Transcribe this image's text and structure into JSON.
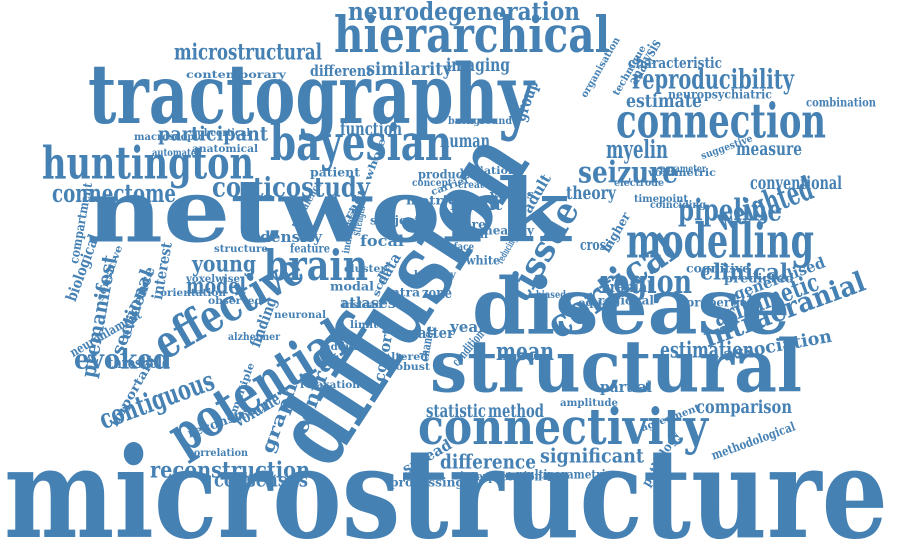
{
  "colors": {
    "word": "#4681b4",
    "background": "#ffffff"
  },
  "words": [
    "microstructure",
    "diffusion",
    "network",
    "tractography",
    "structural",
    "disease",
    "hierarchical",
    "bayesian",
    "connection",
    "connectivity",
    "huntington",
    "modelling",
    "potential",
    "effective",
    "brain",
    "cortical",
    "neurodegeneration",
    "reproducibility",
    "pipeline",
    "tissue",
    "seizure",
    "region",
    "weighted",
    "intracranial",
    "microstructural",
    "corticostudy",
    "connectome",
    "evoked",
    "contiguous",
    "mean",
    "estimation",
    "reconstruction",
    "difference",
    "significant",
    "arithmetic",
    "comparison",
    "association",
    "consensus",
    "clinical",
    "myelin",
    "conventional",
    "measure",
    "characteristic",
    "estimate",
    "young",
    "model",
    "imaging",
    "similarity",
    "different",
    "function",
    "participant",
    "premanifest",
    "sectional",
    "threshold",
    "evidence",
    "interest",
    "volume",
    "control",
    "graph",
    "cohort",
    "year",
    "partial",
    "statistic",
    "method",
    "spread",
    "interpretation",
    "multiparametric",
    "methodological",
    "pathology",
    "amplitude",
    "agreement",
    "neuropsychiatric",
    "organisation",
    "technique",
    "analysis",
    "generalised",
    "properties",
    "predicted",
    "cognitive",
    "combination",
    "cranial",
    "regional",
    "voxels",
    "adult",
    "cross",
    "theory",
    "higher",
    "focal",
    "data",
    "density",
    "atlases",
    "modal",
    "intra",
    "zone",
    "white",
    "matter",
    "healthy",
    "more",
    "result",
    "metric",
    "group",
    "human",
    "background",
    "variation",
    "surface",
    "electrode",
    "volumetric",
    "parameter",
    "suggestive",
    "timepoint",
    "coinciding",
    "patient",
    "produce",
    "concept",
    "created",
    "carrier",
    "subject",
    "feature",
    "structure",
    "compartment",
    "biological",
    "neurofilament",
    "important",
    "reconstruct",
    "processing",
    "correlation",
    "relaxation",
    "alzheimer",
    "neuronal",
    "observed",
    "orientation",
    "voxelwise",
    "anatomical",
    "automated",
    "macroscopic",
    "subcortical",
    "contemporary",
    "finding",
    "robust",
    "altered",
    "addition",
    "condition",
    "change",
    "multiple",
    "individual",
    "strength",
    "total",
    "equal",
    "biased",
    "whole",
    "sensitive",
    "prevalence",
    "reducing",
    "scale",
    "tract",
    "limited",
    "battery",
    "cluster",
    "instead",
    "square"
  ]
}
